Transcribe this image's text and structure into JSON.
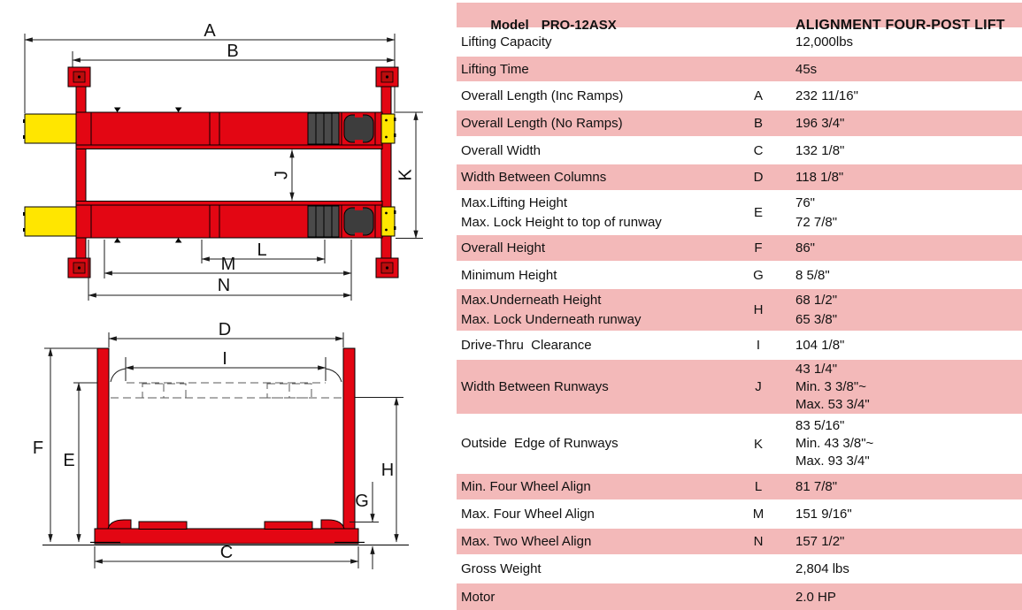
{
  "table": {
    "header": {
      "model_word": "Model",
      "model_value": "PRO-12ASX",
      "product_title": "ALIGNMENT FOUR-POST LIFT"
    },
    "rows": [
      {
        "label": "Lifting Capacity",
        "letter": "",
        "values": [
          "12,000lbs"
        ]
      },
      {
        "label": "Lifting Time",
        "letter": "",
        "values": [
          "45s"
        ]
      },
      {
        "label": "Overall Length (Inc Ramps)",
        "letter": "A",
        "values": [
          "232 11/16\""
        ]
      },
      {
        "label": "Overall Length (No Ramps)",
        "letter": "B",
        "values": [
          "196 3/4\""
        ]
      },
      {
        "label": "Overall Width",
        "letter": "C",
        "values": [
          "132 1/8\""
        ]
      },
      {
        "label": "Width Between Columns",
        "letter": "D",
        "values": [
          "118 1/8\""
        ]
      },
      {
        "label": "Max.Lifting Height\nMax. Lock Height to top of runway",
        "letter": "E",
        "values": [
          "76\"",
          "72 7/8\""
        ]
      },
      {
        "label": "Overall Height",
        "letter": "F",
        "values": [
          "86\""
        ]
      },
      {
        "label": "Minimum Height",
        "letter": "G",
        "values": [
          "8 5/8\""
        ]
      },
      {
        "label": "Max.Underneath Height\nMax. Lock Underneath runway",
        "letter": "H",
        "values": [
          "68 1/2\"",
          "65 3/8\""
        ]
      },
      {
        "label": "Drive-Thru  Clearance",
        "letter": "I",
        "values": [
          "104 1/8\""
        ]
      },
      {
        "label": "Width Between Runways",
        "letter": "J",
        "values": [
          "43 1/4\"",
          "Min. 3 3/8\"~",
          "Max. 53 3/4\""
        ]
      },
      {
        "label": "Outside  Edge of Runways",
        "letter": "K",
        "values": [
          "83 5/16\"",
          "Min. 43 3/8\"~",
          "Max. 93 3/4\""
        ]
      },
      {
        "label": "Min. Four Wheel Align",
        "letter": "L",
        "values": [
          "81 7/8\""
        ]
      },
      {
        "label": "Max. Four Wheel Align",
        "letter": "M",
        "values": [
          "151 9/16\""
        ]
      },
      {
        "label": "Max. Two Wheel Align",
        "letter": "N",
        "values": [
          "157 1/2\""
        ]
      },
      {
        "label": "Gross Weight",
        "letter": "",
        "values": [
          "2,804 lbs"
        ]
      },
      {
        "label": "Motor",
        "letter": "",
        "values": [
          "2.0 HP"
        ]
      }
    ]
  },
  "diagram": {
    "top_view": {
      "labels": {
        "a": "A",
        "b": "B",
        "j": "J",
        "k": "K",
        "l": "L",
        "m": "M",
        "n": "N"
      }
    },
    "front_view": {
      "labels": {
        "d": "D",
        "i": "I",
        "f": "F",
        "e": "E",
        "g": "G",
        "h": "H",
        "c": "C"
      }
    },
    "colors": {
      "red": "#e30613",
      "yellow": "#ffe600",
      "dark_gray": "#4a4a4a",
      "turntable": "#3d3d3d",
      "row_pink": "#f3b9b9"
    }
  }
}
